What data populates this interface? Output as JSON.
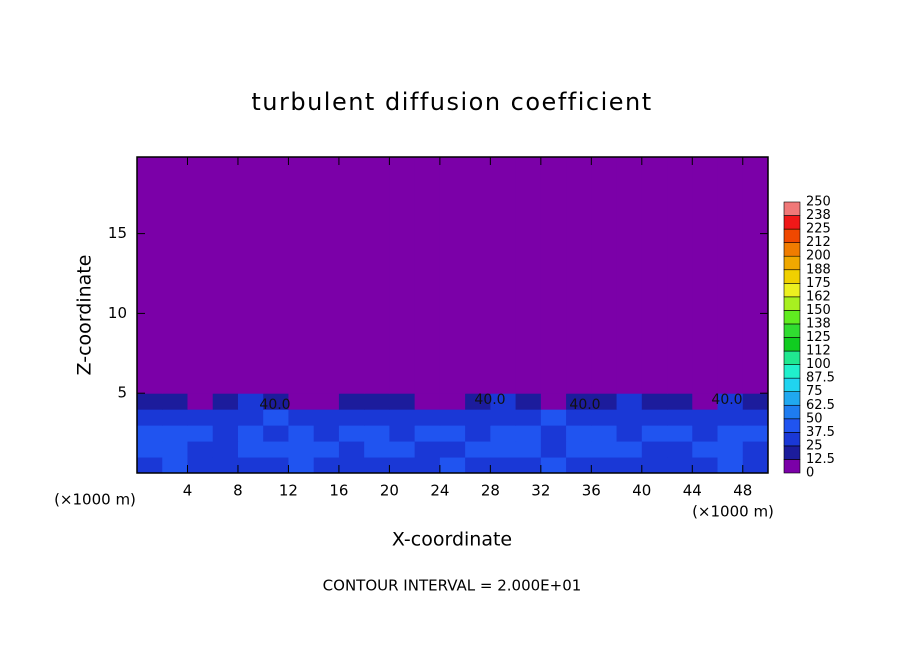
{
  "chart_data": {
    "type": "heatmap",
    "title": "turbulent diffusion coefficient",
    "xlabel": "X-coordinate",
    "ylabel": "Z-coordinate",
    "x_unit_label": "(×1000 m)",
    "footer": "CONTOUR INTERVAL = 2.000E+01",
    "xlim": [
      0,
      50
    ],
    "ylim": [
      0,
      19.8
    ],
    "xticks": [
      4,
      8,
      12,
      16,
      20,
      24,
      28,
      32,
      36,
      40,
      44,
      48
    ],
    "yticks": [
      5,
      10,
      15
    ],
    "xedges": [
      0,
      2,
      4,
      6,
      8,
      10,
      12,
      14,
      16,
      18,
      20,
      22,
      24,
      26,
      28,
      30,
      32,
      34,
      36,
      38,
      40,
      42,
      44,
      46,
      48,
      50
    ],
    "yedges": [
      0,
      1,
      2,
      3,
      4,
      5,
      19.8
    ],
    "z": [
      [
        35,
        38,
        32,
        36,
        30,
        34,
        40,
        37,
        33,
        36,
        31,
        35,
        38,
        34,
        30,
        36,
        39,
        33,
        35,
        37,
        32,
        36,
        34,
        38,
        35
      ],
      [
        40,
        44,
        36,
        30,
        42,
        38,
        45,
        40,
        34,
        39,
        43,
        37,
        32,
        41,
        46,
        38,
        35,
        42,
        40,
        44,
        37,
        33,
        41,
        39,
        36
      ],
      [
        38,
        42,
        40,
        35,
        44,
        30,
        41,
        36,
        43,
        38,
        34,
        40,
        45,
        37,
        42,
        39,
        36,
        44,
        38,
        35,
        42,
        40,
        37,
        43,
        39
      ],
      [
        30,
        34,
        28,
        36,
        32,
        38,
        30,
        35,
        33,
        29,
        37,
        31,
        34,
        36,
        30,
        33,
        38,
        32,
        35,
        30,
        36,
        34,
        31,
        37,
        33
      ],
      [
        18,
        15,
        8,
        22,
        25,
        20,
        12,
        10,
        24,
        22,
        15,
        8,
        12,
        20,
        25,
        22,
        10,
        14,
        22,
        26,
        24,
        18,
        12,
        25,
        20
      ],
      [
        0,
        0,
        0,
        0,
        0,
        0,
        0,
        0,
        0,
        0,
        0,
        0,
        0,
        0,
        0,
        0,
        0,
        0,
        0,
        0,
        0,
        0,
        0,
        0,
        0
      ]
    ],
    "levels": [
      0,
      12.5,
      25,
      37.5,
      50,
      62.5,
      75,
      87.5,
      100,
      {
        "value": 112.5,
        "label": "112"
      },
      125,
      {
        "value": 137.5,
        "label": "138"
      },
      150,
      {
        "value": 162.5,
        "label": "162"
      },
      175,
      {
        "value": 187.5,
        "label": "188"
      },
      200,
      {
        "value": 212.5,
        "label": "212"
      },
      225,
      {
        "value": 237.5,
        "label": "238"
      },
      250
    ],
    "colors": [
      "#7b00a8",
      "#1c1c9c",
      "#1a38d6",
      "#2054f0",
      "#1e7cf0",
      "#20a8f0",
      "#20d4f0",
      "#20f0cc",
      "#20e890",
      "#10cc20",
      "#30dc30",
      "#60ec20",
      "#a8f020",
      "#ecf020",
      "#f0d000",
      "#f0a800",
      "#f07c00",
      "#f04800",
      "#f01818",
      "#f07878"
    ],
    "contour_labels": [
      "40.0",
      "40.0",
      "40.0",
      "40.0"
    ]
  }
}
